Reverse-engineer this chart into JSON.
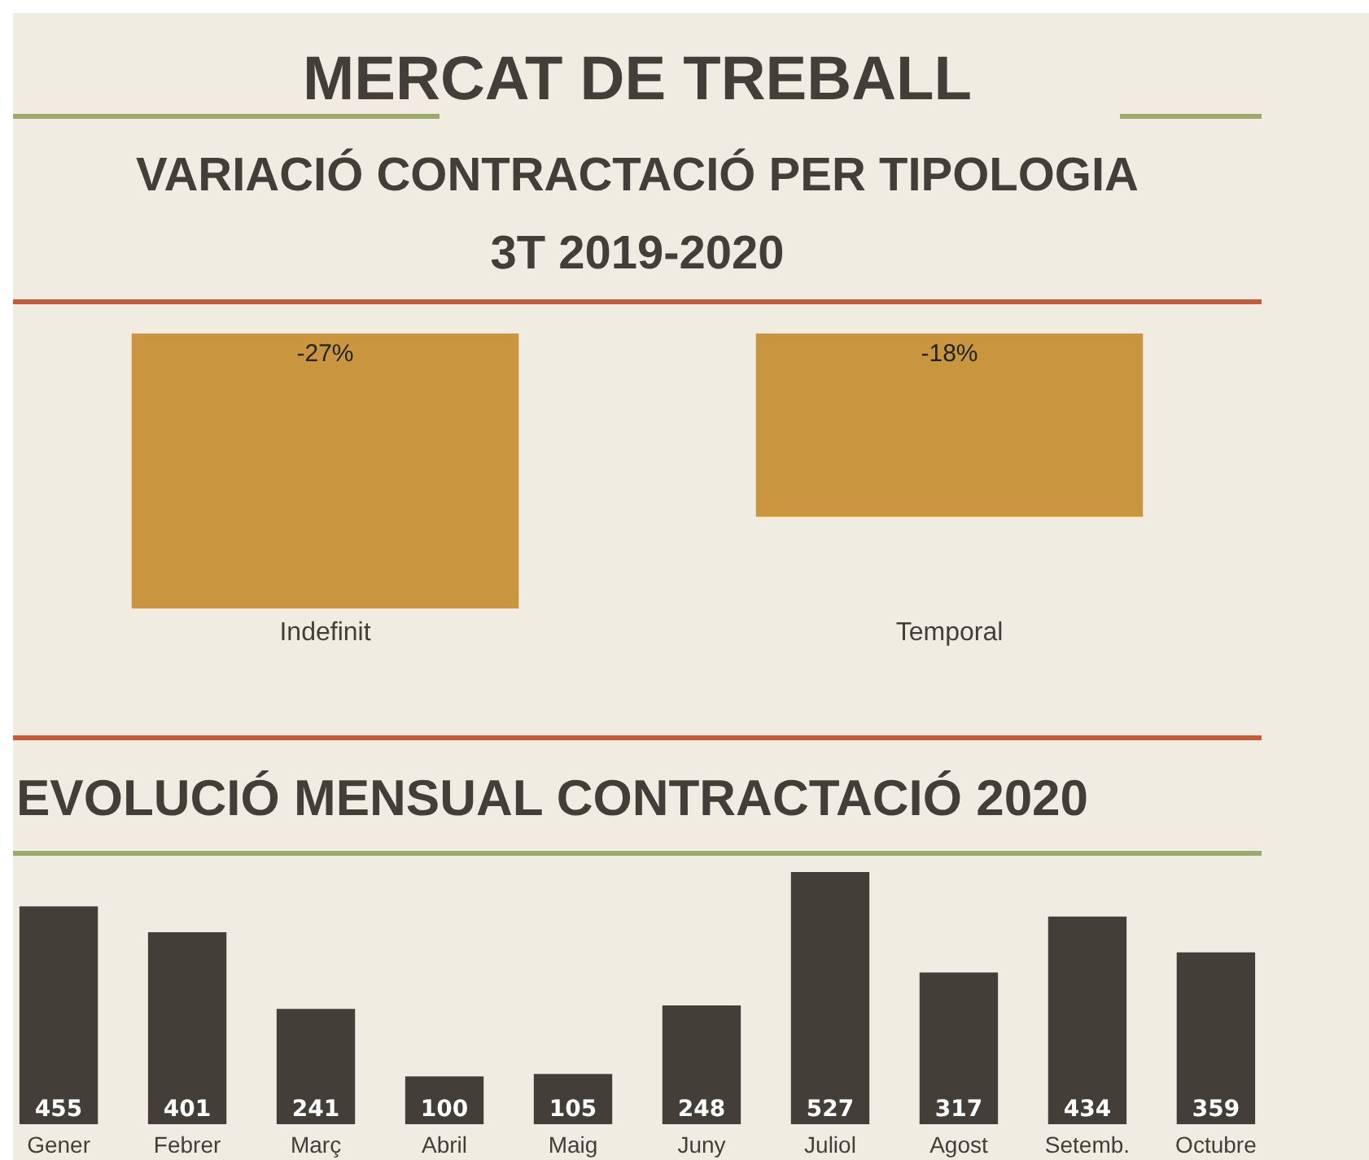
{
  "chart_data": [
    {
      "type": "bar",
      "title": "MERCAT DE TREBALL",
      "subtitle": "VARIACIÓ CONTRACTACIÓ PER TIPOLOGIA 3T 2019-2020",
      "categories": [
        "Indefinit",
        "Temporal"
      ],
      "values": [
        -27,
        -18
      ],
      "value_labels": [
        "-27%",
        "-18%"
      ],
      "color": "#c9963f",
      "tick_labels": "x"
    },
    {
      "type": "bar",
      "title": "EVOLUCIÓ MENSUAL CONTRACTACIÓ 2020",
      "categories": [
        "Gener",
        "Febrer",
        "Març",
        "Abril",
        "Maig",
        "Juny",
        "Juliol",
        "Agost",
        "Setemb.",
        "Octubre"
      ],
      "values": [
        455,
        401,
        241,
        100,
        105,
        248,
        527,
        317,
        434,
        359
      ],
      "color": "#433f38",
      "data_labels": true,
      "tick_labels": "x"
    }
  ]
}
